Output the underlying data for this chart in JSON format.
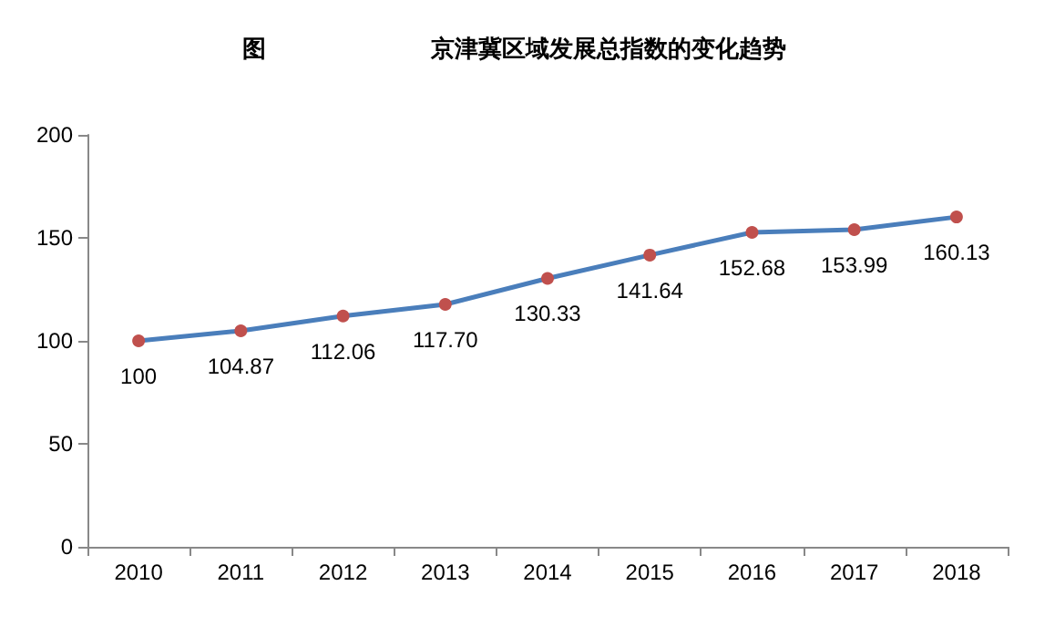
{
  "chart_data": {
    "type": "line",
    "title": "图                    京津冀区域发展总指数的变化趋势",
    "categories": [
      "2010",
      "2011",
      "2012",
      "2013",
      "2014",
      "2015",
      "2016",
      "2017",
      "2018"
    ],
    "series": [
      {
        "color": "#4a7ebb",
        "colors": [
          "#c0504d",
          "#c0504d",
          "#c0504d",
          "#c0504d",
          "#c0504d",
          "#c0504d",
          "#c0504d",
          "#c0504d",
          "#c0504d"
        ],
        "values": [
          100,
          104.87,
          112.06,
          117.7,
          130.33,
          141.64,
          152.68,
          153.99,
          160.13
        ],
        "value_labels": [
          "100",
          "104.87",
          "112.06",
          "117.70",
          "130.33",
          "141.64",
          "152.68",
          "153.99",
          "160.13"
        ]
      }
    ],
    "ylim": [
      0,
      200
    ],
    "yticks": [
      0,
      50,
      100,
      150,
      200
    ],
    "grid": false,
    "marker": "circle",
    "line_style": "solid"
  }
}
